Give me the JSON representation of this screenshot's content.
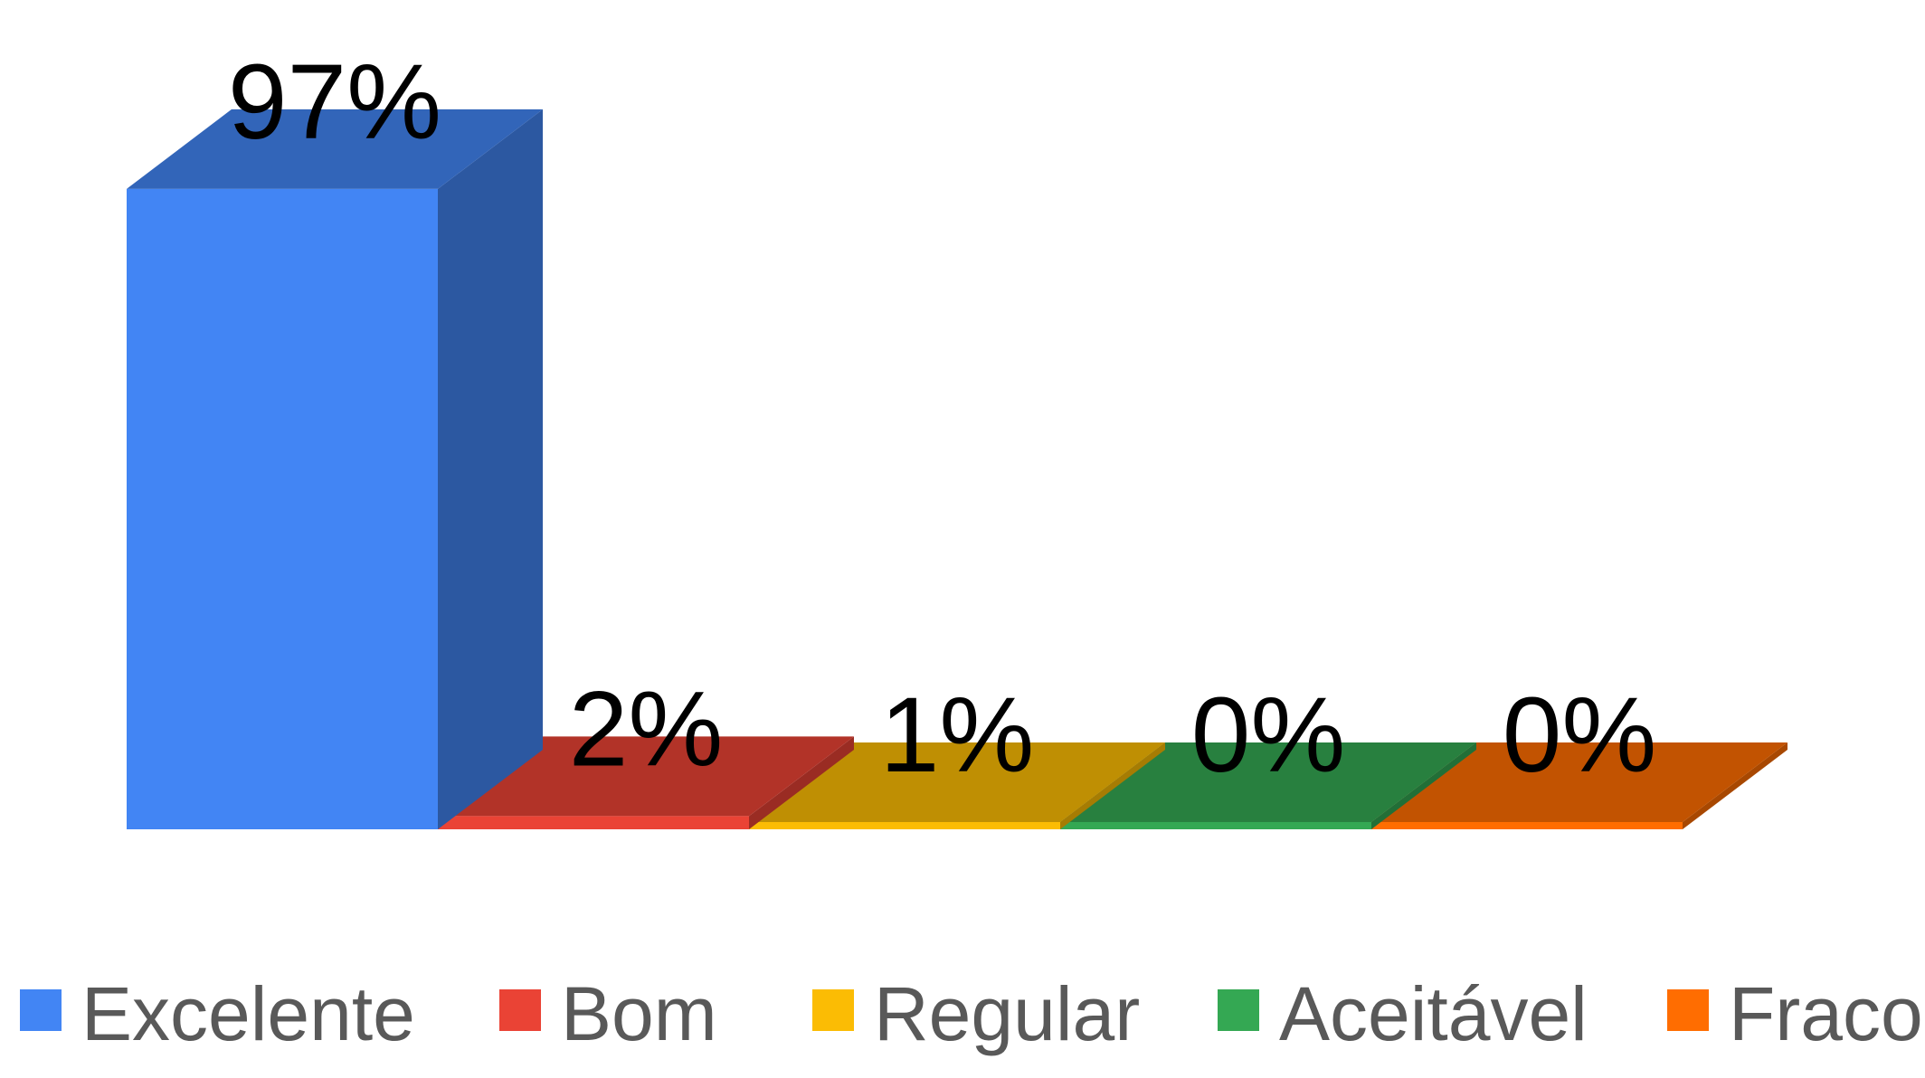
{
  "chart_data": {
    "type": "bar",
    "three_d": true,
    "categories": [
      "Excelente",
      "Bom",
      "Regular",
      "Aceitável",
      "Fraco"
    ],
    "values": [
      97,
      2,
      1,
      0,
      0
    ],
    "data_labels": [
      "97%",
      "2%",
      "1%",
      "0%",
      "0%"
    ],
    "title": "",
    "xlabel": "",
    "ylabel": "",
    "ylim": [
      0,
      100
    ],
    "grid": false,
    "legend_position": "bottom",
    "colors": [
      "#4285f4",
      "#ea4335",
      "#fbbc04",
      "#34a853",
      "#ff6d01"
    ]
  }
}
